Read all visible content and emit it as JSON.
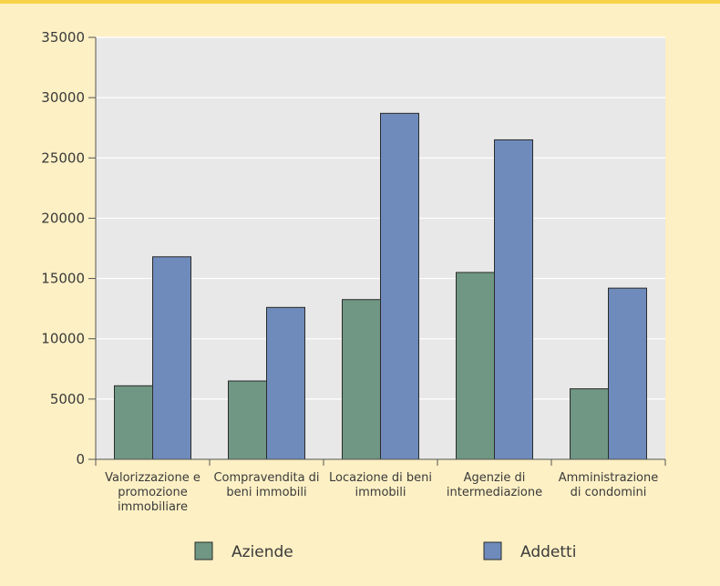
{
  "chart_data": {
    "type": "bar",
    "categories": [
      [
        "Valorizzazione e",
        "promozione",
        "immobiliare"
      ],
      [
        "Compravendita di",
        "beni immobili"
      ],
      [
        "Locazione di beni",
        "immobili"
      ],
      [
        "Agenzie di",
        "intermediazione"
      ],
      [
        "Amministrazione",
        "di condomini"
      ]
    ],
    "series": [
      {
        "name": "Aziende",
        "values": [
          6100,
          6500,
          13250,
          15500,
          5850
        ],
        "color": "#6f9783"
      },
      {
        "name": "Addetti",
        "values": [
          16800,
          12600,
          28700,
          26500,
          14200
        ],
        "color": "#6e8bbb"
      }
    ],
    "ylim": [
      0,
      35000
    ],
    "yticks": [
      0,
      5000,
      10000,
      15000,
      20000,
      25000,
      30000,
      35000
    ],
    "grid": true,
    "legend_position": "bottom",
    "colors": {
      "background": "#fdf0c4",
      "plot": "#e8e8e8",
      "accent": "#f7d24a"
    }
  }
}
